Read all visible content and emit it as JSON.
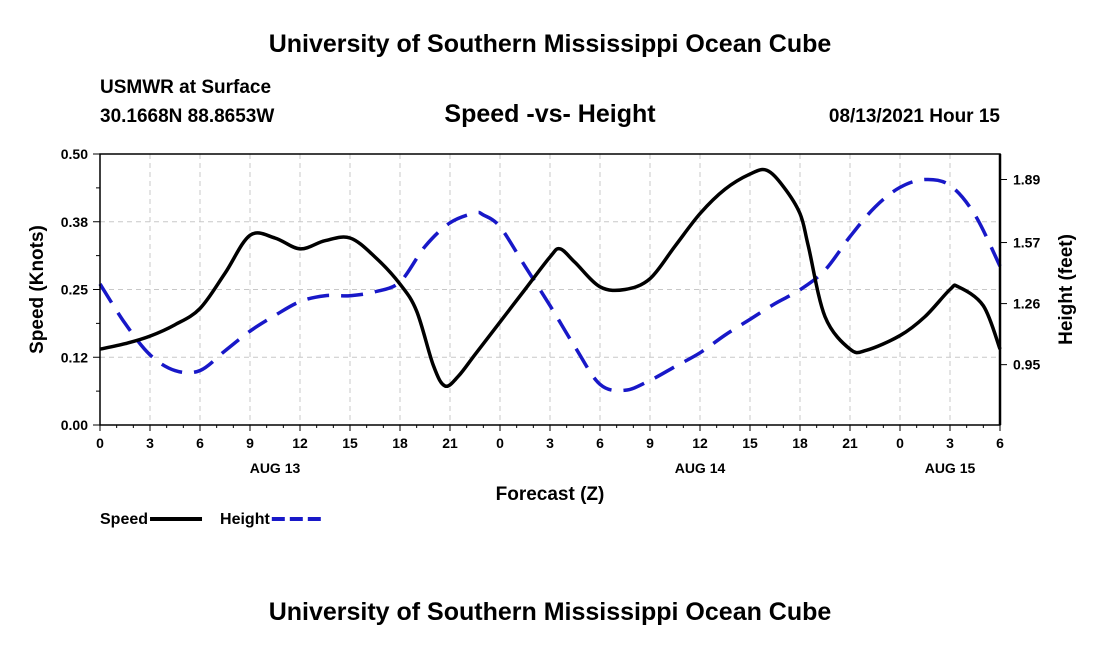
{
  "header": {
    "title": "University of Southern Mississippi Ocean Cube",
    "station": "USMWR at Surface",
    "coords": "30.1668N  88.8653W",
    "subtitle": "Speed -vs- Height",
    "datetime": "08/13/2021 Hour 15",
    "footer_title": "University of Southern Mississippi Ocean Cube"
  },
  "chart_data": {
    "type": "line",
    "title": "Speed -vs- Height",
    "xlabel": "Forecast (Z)",
    "ylabel": "Speed (Knots)",
    "y2label": "Height (feet)",
    "grid": true,
    "x_range": [
      0,
      54
    ],
    "x_ticks": [
      {
        "x": 0,
        "label": "0"
      },
      {
        "x": 3,
        "label": "3"
      },
      {
        "x": 6,
        "label": "6"
      },
      {
        "x": 9,
        "label": "9"
      },
      {
        "x": 12,
        "label": "12"
      },
      {
        "x": 15,
        "label": "15"
      },
      {
        "x": 18,
        "label": "18"
      },
      {
        "x": 21,
        "label": "21"
      },
      {
        "x": 24,
        "label": "0"
      },
      {
        "x": 27,
        "label": "3"
      },
      {
        "x": 30,
        "label": "6"
      },
      {
        "x": 33,
        "label": "9"
      },
      {
        "x": 36,
        "label": "12"
      },
      {
        "x": 39,
        "label": "15"
      },
      {
        "x": 42,
        "label": "18"
      },
      {
        "x": 45,
        "label": "21"
      },
      {
        "x": 48,
        "label": "0"
      },
      {
        "x": 51,
        "label": "3"
      },
      {
        "x": 54,
        "label": "6"
      }
    ],
    "day_labels": [
      {
        "x": 10.5,
        "label": "AUG 13"
      },
      {
        "x": 36,
        "label": "AUG 14"
      },
      {
        "x": 51,
        "label": "AUG 15"
      }
    ],
    "ylim": [
      0,
      0.5
    ],
    "y_ticks": [
      {
        "value": 0,
        "label": "0.00"
      },
      {
        "value": 0.125,
        "label": "0.12"
      },
      {
        "value": 0.25,
        "label": "0.25"
      },
      {
        "value": 0.375,
        "label": "0.38"
      },
      {
        "value": 0.5,
        "label": "0.50"
      }
    ],
    "y2lim": [
      0.6436,
      2.0195
    ],
    "y2_ticks": [
      {
        "value": 0.95,
        "label": "0.95"
      },
      {
        "value": 1.26,
        "label": "1.26"
      },
      {
        "value": 1.57,
        "label": "1.57"
      },
      {
        "value": 1.89,
        "label": "1.89"
      }
    ],
    "legend": "bottom-left",
    "series": [
      {
        "name": "Speed",
        "axis": "left",
        "color": "#000000",
        "dash": "solid",
        "x": [
          0,
          1.5,
          3,
          4.5,
          6,
          7.5,
          9,
          10.5,
          12,
          13.5,
          15,
          16.5,
          18,
          19,
          20,
          20.7,
          21.5,
          22.5,
          24,
          25.5,
          27,
          27.6,
          28.5,
          30,
          31.5,
          33,
          34.5,
          36,
          37.5,
          39,
          40,
          41,
          42,
          42.5,
          43.5,
          45,
          46,
          48,
          49.5,
          51,
          51.5,
          53,
          54
        ],
        "y": [
          0.14,
          0.15,
          0.164,
          0.185,
          0.215,
          0.28,
          0.35,
          0.345,
          0.325,
          0.34,
          0.345,
          0.31,
          0.26,
          0.21,
          0.11,
          0.072,
          0.09,
          0.13,
          0.19,
          0.25,
          0.31,
          0.325,
          0.3,
          0.255,
          0.25,
          0.27,
          0.33,
          0.39,
          0.435,
          0.463,
          0.47,
          0.44,
          0.39,
          0.33,
          0.2,
          0.14,
          0.138,
          0.165,
          0.2,
          0.25,
          0.255,
          0.22,
          0.14
        ]
      },
      {
        "name": "Height",
        "axis": "right",
        "color": "#1818c8",
        "dash": "dashed",
        "x": [
          0,
          1.5,
          3,
          4.5,
          6,
          7.5,
          9,
          10.5,
          12,
          13.5,
          15,
          16.5,
          18,
          19.5,
          21,
          22.5,
          23,
          24,
          25.5,
          27,
          28.5,
          30,
          31.5,
          33,
          34.5,
          36,
          37.5,
          39,
          40.5,
          42,
          43.5,
          45,
          46.5,
          48,
          49.5,
          51,
          52.5,
          54
        ],
        "y": [
          1.36,
          1.16,
          1.0,
          0.92,
          0.92,
          1.02,
          1.12,
          1.2,
          1.27,
          1.3,
          1.3,
          1.32,
          1.37,
          1.55,
          1.67,
          1.72,
          1.71,
          1.65,
          1.45,
          1.25,
          1.04,
          0.85,
          0.82,
          0.87,
          0.94,
          1.01,
          1.1,
          1.18,
          1.26,
          1.33,
          1.43,
          1.6,
          1.75,
          1.85,
          1.89,
          1.86,
          1.71,
          1.45
        ]
      }
    ]
  }
}
